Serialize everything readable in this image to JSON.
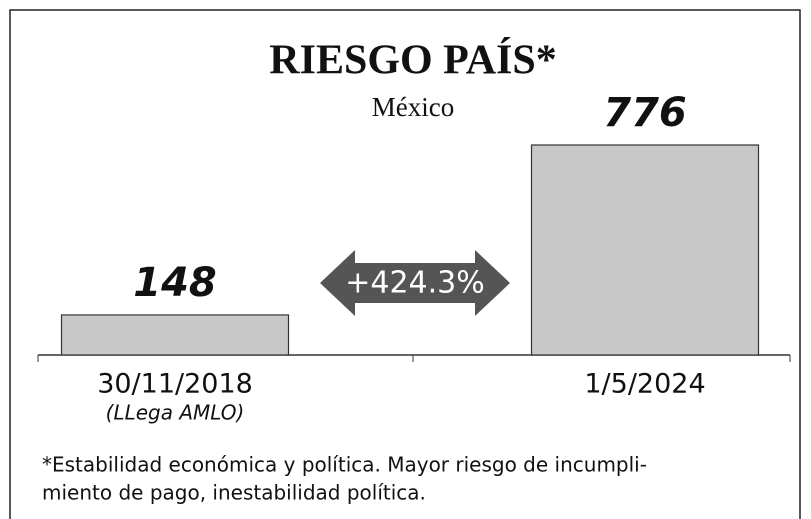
{
  "chart_data": {
    "type": "bar",
    "title": "RIESGO PAÍS*",
    "subtitle": "México",
    "categories": [
      "30/11/2018",
      "1/5/2024"
    ],
    "category_notes": [
      "(LLega AMLO)",
      null
    ],
    "values": [
      148,
      776
    ],
    "color": "#c8c8c8",
    "annotation": "+424.3%",
    "footnote": [
      "*Estabilidad económica y política. Mayor riesgo de incumpli-",
      "miento de pago, inestabilidad política."
    ]
  }
}
